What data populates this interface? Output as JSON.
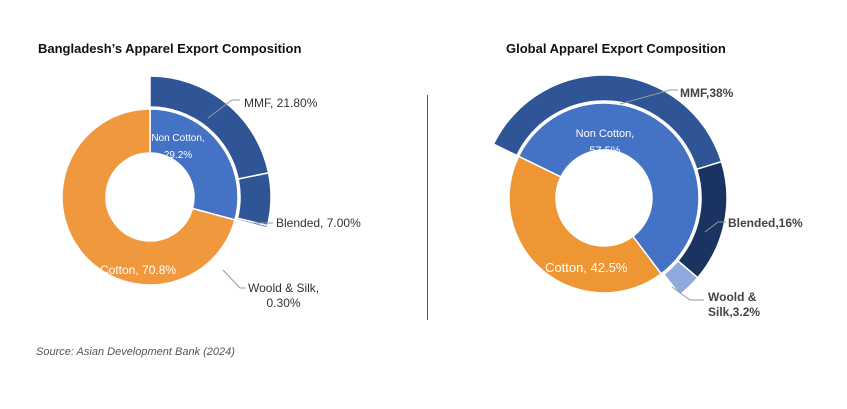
{
  "source": "Source: Asian Development Bank (2024)",
  "chart_data": [
    {
      "type": "sunburst",
      "title": "Bangladesh’s Apparel Export Composition",
      "inner": [
        {
          "name": "Non Cotton",
          "value": 29.2,
          "label": "Non Cotton,",
          "label2": "29.2%",
          "color": "#4472c4"
        },
        {
          "name": "Cotton",
          "value": 70.8,
          "label": "Cotton, 70.8%",
          "color": "#f0983e"
        }
      ],
      "outer": [
        {
          "name": "MMF",
          "value": 21.8,
          "label": "MMF, 21.80%",
          "color": "#2f5597"
        },
        {
          "name": "Blended",
          "value": 7.0,
          "label": "Blended, 7.00%",
          "color": "#2f5597"
        },
        {
          "name": "Woold & Silk",
          "value": 0.3,
          "label": "Woold & Silk,",
          "label2": "0.30%",
          "color": "#2f5597"
        }
      ]
    },
    {
      "type": "sunburst",
      "title": "Global Apparel Export Composition",
      "inner": [
        {
          "name": "Non Cotton",
          "value": 57.5,
          "label": "Non Cotton,",
          "label2": "57.5%",
          "color": "#4472c4"
        },
        {
          "name": "Cotton",
          "value": 42.5,
          "label": "Cotton, 42.5%",
          "color": "#ed9633"
        }
      ],
      "outer": [
        {
          "name": "MMF",
          "value": 38,
          "label": "MMF,38%",
          "color": "#2f5597"
        },
        {
          "name": "Blended",
          "value": 16,
          "label": "Blended,16%",
          "color": "#1a3360"
        },
        {
          "name": "Woold & Silk",
          "value": 3.2,
          "label": "Woold &",
          "label2": "Silk,3.2%",
          "color": "#8ea9db"
        }
      ]
    }
  ]
}
